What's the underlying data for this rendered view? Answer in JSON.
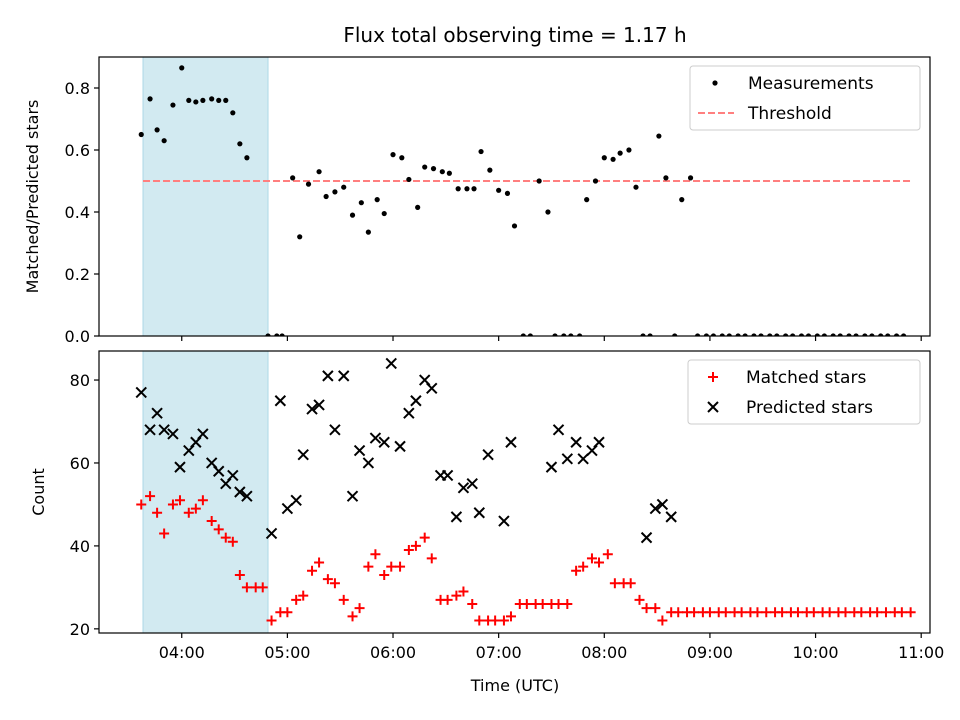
{
  "title": "Flux total observing time = 1.17 h",
  "xlabel": "Time (UTC)",
  "xticks": [
    "04:00",
    "05:00",
    "06:00",
    "07:00",
    "08:00",
    "09:00",
    "10:00",
    "11:00"
  ],
  "shaded_span": [
    "03:38",
    "04:49"
  ],
  "colors": {
    "shade": "#add8e6",
    "threshold": "#ff7f7f",
    "matched": "#ff0000",
    "predicted": "#000000",
    "measurement": "#000000"
  },
  "chart_data": [
    {
      "type": "scatter",
      "ylabel": "Matched/Predicted stars",
      "ylim": [
        0,
        0.9
      ],
      "yticks": [
        "0.0",
        "0.2",
        "0.4",
        "0.6",
        "0.8"
      ],
      "legend": {
        "placement": "top-right",
        "entries": [
          "Measurements",
          "Threshold"
        ]
      },
      "threshold": {
        "name": "Threshold",
        "value": 0.5,
        "x_range": [
          "03:38",
          "10:54"
        ]
      },
      "series": [
        {
          "name": "Measurements",
          "marker": "dot",
          "points": [
            [
              "03:37",
              0.65
            ],
            [
              "03:42",
              0.765
            ],
            [
              "03:46",
              0.665
            ],
            [
              "03:50",
              0.63
            ],
            [
              "03:55",
              0.745
            ],
            [
              "04:00",
              0.865
            ],
            [
              "04:04",
              0.76
            ],
            [
              "04:08",
              0.755
            ],
            [
              "04:12",
              0.76
            ],
            [
              "04:17",
              0.765
            ],
            [
              "04:21",
              0.76
            ],
            [
              "04:25",
              0.76
            ],
            [
              "04:29",
              0.72
            ],
            [
              "04:33",
              0.62
            ],
            [
              "04:37",
              0.575
            ],
            [
              "04:49",
              0.0
            ],
            [
              "04:54",
              0.0
            ],
            [
              "04:57",
              0.0
            ],
            [
              "05:03",
              0.51
            ],
            [
              "05:07",
              0.32
            ],
            [
              "05:12",
              0.49
            ],
            [
              "05:18",
              0.53
            ],
            [
              "05:22",
              0.45
            ],
            [
              "05:27",
              0.465
            ],
            [
              "05:32",
              0.48
            ],
            [
              "05:37",
              0.39
            ],
            [
              "05:42",
              0.43
            ],
            [
              "05:46",
              0.335
            ],
            [
              "05:51",
              0.44
            ],
            [
              "05:55",
              0.395
            ],
            [
              "06:00",
              0.585
            ],
            [
              "06:05",
              0.575
            ],
            [
              "06:09",
              0.505
            ],
            [
              "06:14",
              0.415
            ],
            [
              "06:18",
              0.545
            ],
            [
              "06:23",
              0.54
            ],
            [
              "06:28",
              0.53
            ],
            [
              "06:32",
              0.525
            ],
            [
              "06:37",
              0.475
            ],
            [
              "06:42",
              0.475
            ],
            [
              "06:46",
              0.475
            ],
            [
              "06:50",
              0.595
            ],
            [
              "06:55",
              0.535
            ],
            [
              "07:00",
              0.47
            ],
            [
              "07:05",
              0.46
            ],
            [
              "07:09",
              0.355
            ],
            [
              "07:14",
              0.0
            ],
            [
              "07:18",
              0.0
            ],
            [
              "07:23",
              0.5
            ],
            [
              "07:28",
              0.4
            ],
            [
              "07:32",
              0.0
            ],
            [
              "07:37",
              0.0
            ],
            [
              "07:41",
              0.0
            ],
            [
              "07:46",
              0.0
            ],
            [
              "07:50",
              0.44
            ],
            [
              "07:55",
              0.5
            ],
            [
              "08:00",
              0.575
            ],
            [
              "08:05",
              0.57
            ],
            [
              "08:09",
              0.59
            ],
            [
              "08:14",
              0.6
            ],
            [
              "08:18",
              0.48
            ],
            [
              "08:22",
              0.0
            ],
            [
              "08:26",
              0.0
            ],
            [
              "08:31",
              0.645
            ],
            [
              "08:35",
              0.51
            ],
            [
              "08:40",
              0.0
            ],
            [
              "08:44",
              0.44
            ],
            [
              "08:49",
              0.51
            ],
            [
              "08:53",
              0.0
            ],
            [
              "08:58",
              0.0
            ],
            [
              "09:02",
              0.0
            ],
            [
              "09:07",
              0.0
            ],
            [
              "09:11",
              0.0
            ],
            [
              "09:16",
              0.0
            ],
            [
              "09:20",
              0.0
            ],
            [
              "09:25",
              0.0
            ],
            [
              "09:29",
              0.0
            ],
            [
              "09:34",
              0.0
            ],
            [
              "09:38",
              0.0
            ],
            [
              "09:43",
              0.0
            ],
            [
              "09:47",
              0.0
            ],
            [
              "09:52",
              0.0
            ],
            [
              "09:56",
              0.0
            ],
            [
              "10:01",
              0.0
            ],
            [
              "10:05",
              0.0
            ],
            [
              "10:10",
              0.0
            ],
            [
              "10:14",
              0.0
            ],
            [
              "10:19",
              0.0
            ],
            [
              "10:23",
              0.0
            ],
            [
              "10:28",
              0.0
            ],
            [
              "10:32",
              0.0
            ],
            [
              "10:37",
              0.0
            ],
            [
              "10:41",
              0.0
            ],
            [
              "10:46",
              0.0
            ],
            [
              "10:50",
              0.0
            ]
          ]
        }
      ]
    },
    {
      "type": "scatter",
      "ylabel": "Count",
      "ylim": [
        19,
        87
      ],
      "yticks": [
        "20",
        "40",
        "60",
        "80"
      ],
      "legend": {
        "placement": "top-right",
        "entries": [
          "Matched stars",
          "Predicted stars"
        ]
      },
      "series": [
        {
          "name": "Matched stars",
          "marker": "plus",
          "points": [
            [
              "03:37",
              50
            ],
            [
              "03:42",
              52
            ],
            [
              "03:46",
              48
            ],
            [
              "03:50",
              43
            ],
            [
              "03:55",
              50
            ],
            [
              "03:59",
              51
            ],
            [
              "04:04",
              48
            ],
            [
              "04:08",
              49
            ],
            [
              "04:12",
              51
            ],
            [
              "04:17",
              46
            ],
            [
              "04:21",
              44
            ],
            [
              "04:25",
              42
            ],
            [
              "04:29",
              41
            ],
            [
              "04:33",
              33
            ],
            [
              "04:37",
              30
            ],
            [
              "04:42",
              30
            ],
            [
              "04:46",
              30
            ],
            [
              "04:51",
              22
            ],
            [
              "04:56",
              24
            ],
            [
              "05:00",
              24
            ],
            [
              "05:05",
              27
            ],
            [
              "05:09",
              28
            ],
            [
              "05:14",
              34
            ],
            [
              "05:18",
              36
            ],
            [
              "05:23",
              32
            ],
            [
              "05:27",
              31
            ],
            [
              "05:32",
              27
            ],
            [
              "05:37",
              23
            ],
            [
              "05:41",
              25
            ],
            [
              "05:46",
              35
            ],
            [
              "05:50",
              38
            ],
            [
              "05:55",
              33
            ],
            [
              "05:59",
              35
            ],
            [
              "06:04",
              35
            ],
            [
              "06:09",
              39
            ],
            [
              "06:13",
              40
            ],
            [
              "06:18",
              42
            ],
            [
              "06:22",
              37
            ],
            [
              "06:27",
              27
            ],
            [
              "06:31",
              27
            ],
            [
              "06:36",
              28
            ],
            [
              "06:40",
              29
            ],
            [
              "06:45",
              26
            ],
            [
              "06:49",
              22
            ],
            [
              "06:54",
              22
            ],
            [
              "06:58",
              22
            ],
            [
              "07:03",
              22
            ],
            [
              "07:07",
              23
            ],
            [
              "07:12",
              26
            ],
            [
              "07:16",
              26
            ],
            [
              "07:21",
              26
            ],
            [
              "07:25",
              26
            ],
            [
              "07:30",
              26
            ],
            [
              "07:34",
              26
            ],
            [
              "07:39",
              26
            ],
            [
              "07:44",
              34
            ],
            [
              "07:48",
              35
            ],
            [
              "07:53",
              37
            ],
            [
              "07:57",
              36
            ],
            [
              "08:02",
              38
            ],
            [
              "08:06",
              31
            ],
            [
              "08:11",
              31
            ],
            [
              "08:15",
              31
            ],
            [
              "08:20",
              27
            ],
            [
              "08:24",
              25
            ],
            [
              "08:29",
              25
            ],
            [
              "08:33",
              22
            ],
            [
              "08:38",
              24
            ],
            [
              "08:42",
              24
            ],
            [
              "08:47",
              24
            ],
            [
              "08:51",
              24
            ],
            [
              "08:56",
              24
            ],
            [
              "09:00",
              24
            ],
            [
              "09:05",
              24
            ],
            [
              "09:09",
              24
            ],
            [
              "09:14",
              24
            ],
            [
              "09:18",
              24
            ],
            [
              "09:23",
              24
            ],
            [
              "09:27",
              24
            ],
            [
              "09:32",
              24
            ],
            [
              "09:37",
              24
            ],
            [
              "09:41",
              24
            ],
            [
              "09:46",
              24
            ],
            [
              "09:50",
              24
            ],
            [
              "09:55",
              24
            ],
            [
              "09:59",
              24
            ],
            [
              "10:04",
              24
            ],
            [
              "10:08",
              24
            ],
            [
              "10:13",
              24
            ],
            [
              "10:17",
              24
            ],
            [
              "10:22",
              24
            ],
            [
              "10:26",
              24
            ],
            [
              "10:31",
              24
            ],
            [
              "10:35",
              24
            ],
            [
              "10:40",
              24
            ],
            [
              "10:45",
              24
            ],
            [
              "10:49",
              24
            ],
            [
              "10:54",
              24
            ]
          ]
        },
        {
          "name": "Predicted stars",
          "marker": "x",
          "points": [
            [
              "03:37",
              77
            ],
            [
              "03:42",
              68
            ],
            [
              "03:46",
              72
            ],
            [
              "03:50",
              68
            ],
            [
              "03:55",
              67
            ],
            [
              "03:59",
              59
            ],
            [
              "04:04",
              63
            ],
            [
              "04:08",
              65
            ],
            [
              "04:12",
              67
            ],
            [
              "04:17",
              60
            ],
            [
              "04:21",
              58
            ],
            [
              "04:25",
              55
            ],
            [
              "04:29",
              57
            ],
            [
              "04:33",
              53
            ],
            [
              "04:37",
              52
            ],
            [
              "04:51",
              43
            ],
            [
              "04:56",
              75
            ],
            [
              "05:00",
              49
            ],
            [
              "05:05",
              51
            ],
            [
              "05:09",
              62
            ],
            [
              "05:14",
              73
            ],
            [
              "05:18",
              74
            ],
            [
              "05:23",
              81
            ],
            [
              "05:27",
              68
            ],
            [
              "05:32",
              81
            ],
            [
              "05:37",
              52
            ],
            [
              "05:41",
              63
            ],
            [
              "05:46",
              60
            ],
            [
              "05:50",
              66
            ],
            [
              "05:55",
              65
            ],
            [
              "05:59",
              84
            ],
            [
              "06:04",
              64
            ],
            [
              "06:09",
              72
            ],
            [
              "06:13",
              75
            ],
            [
              "06:18",
              80
            ],
            [
              "06:22",
              78
            ],
            [
              "06:27",
              57
            ],
            [
              "06:31",
              57
            ],
            [
              "06:36",
              47
            ],
            [
              "06:40",
              54
            ],
            [
              "06:45",
              55
            ],
            [
              "06:49",
              48
            ],
            [
              "06:54",
              62
            ],
            [
              "07:03",
              46
            ],
            [
              "07:07",
              65
            ],
            [
              "07:30",
              59
            ],
            [
              "07:34",
              68
            ],
            [
              "07:39",
              61
            ],
            [
              "07:44",
              65
            ],
            [
              "07:48",
              61
            ],
            [
              "07:53",
              63
            ],
            [
              "07:57",
              65
            ],
            [
              "08:24",
              42
            ],
            [
              "08:29",
              49
            ],
            [
              "08:33",
              50
            ],
            [
              "08:38",
              47
            ]
          ]
        }
      ]
    }
  ]
}
